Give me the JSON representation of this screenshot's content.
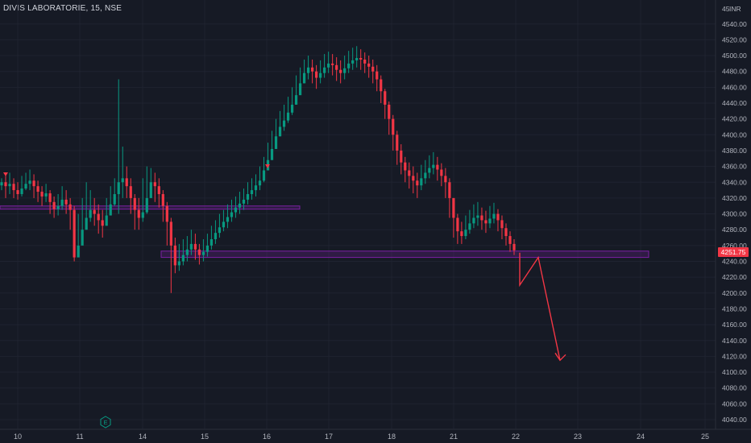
{
  "header": {
    "title": "DIVIS LABORATORIE, 15, NSE"
  },
  "currency": "INR",
  "chart_data": {
    "type": "candlestick",
    "title": "DIVIS LABORATORIE, 15, NSE",
    "y_axis": {
      "min": 4040,
      "max": 4540,
      "ticks": [
        4540,
        4520,
        4500,
        4480,
        4460,
        4440,
        4420,
        4400,
        4380,
        4360,
        4340,
        4320,
        4300,
        4280,
        4260,
        4240,
        4220,
        4200,
        4180,
        4160,
        4140,
        4120,
        4100,
        4080,
        4060,
        4040
      ],
      "top_partial_label": "45",
      "currency_label": "INR"
    },
    "x_axis": {
      "ticks": [
        "10",
        "11",
        "14",
        "15",
        "16",
        "17",
        "18",
        "21",
        "22",
        "23",
        "24",
        "25"
      ]
    },
    "last_price": {
      "label": "4251.75",
      "value": 4251.75,
      "color": "#f23645"
    },
    "colors": {
      "up": "#089981",
      "down": "#f23645",
      "zone": "#7b1fa2",
      "background": "#161a25",
      "grid": "#1f2330"
    },
    "candles_path": [
      [
        4340,
        4345,
        4330
      ],
      [
        4335,
        4350,
        4320
      ],
      [
        4338,
        4352,
        4325
      ],
      [
        4330,
        4345,
        4320
      ],
      [
        4325,
        4340,
        4318
      ],
      [
        4332,
        4348,
        4322
      ],
      [
        4338,
        4352,
        4330
      ],
      [
        4342,
        4356,
        4330
      ],
      [
        4335,
        4350,
        4320
      ],
      [
        4328,
        4342,
        4315
      ],
      [
        4322,
        4335,
        4310
      ],
      [
        4326,
        4338,
        4315
      ],
      [
        4315,
        4330,
        4300
      ],
      [
        4306,
        4322,
        4295
      ],
      [
        4310,
        4325,
        4298
      ],
      [
        4318,
        4335,
        4305
      ],
      [
        4312,
        4330,
        4300
      ],
      [
        4305,
        4320,
        4280
      ],
      [
        4245,
        4310,
        4240
      ],
      [
        4260,
        4300,
        4250
      ],
      [
        4280,
        4320,
        4270
      ],
      [
        4295,
        4340,
        4280
      ],
      [
        4305,
        4330,
        4290
      ],
      [
        4300,
        4320,
        4285
      ],
      [
        4292,
        4312,
        4275
      ],
      [
        4285,
        4305,
        4270
      ],
      [
        4298,
        4320,
        4285
      ],
      [
        4312,
        4335,
        4300
      ],
      [
        4325,
        4345,
        4310
      ],
      [
        4340,
        4470,
        4300
      ],
      [
        4345,
        4385,
        4320
      ],
      [
        4335,
        4360,
        4320
      ],
      [
        4320,
        4345,
        4300
      ],
      [
        4305,
        4325,
        4280
      ],
      [
        4295,
        4320,
        4280
      ],
      [
        4302,
        4345,
        4290
      ],
      [
        4320,
        4360,
        4300
      ],
      [
        4340,
        4358,
        4320
      ],
      [
        4335,
        4352,
        4315
      ],
      [
        4325,
        4345,
        4308
      ],
      [
        4310,
        4330,
        4290
      ],
      [
        4290,
        4315,
        4260
      ],
      [
        4260,
        4295,
        4200
      ],
      [
        4235,
        4270,
        4225
      ],
      [
        4240,
        4262,
        4228
      ],
      [
        4248,
        4268,
        4235
      ],
      [
        4255,
        4272,
        4240
      ],
      [
        4262,
        4280,
        4248
      ],
      [
        4255,
        4275,
        4242
      ],
      [
        4248,
        4262,
        4236
      ],
      [
        4252,
        4268,
        4240
      ],
      [
        4260,
        4275,
        4246
      ],
      [
        4268,
        4285,
        4255
      ],
      [
        4276,
        4292,
        4262
      ],
      [
        4283,
        4300,
        4270
      ],
      [
        4290,
        4305,
        4278
      ],
      [
        4296,
        4312,
        4282
      ],
      [
        4302,
        4318,
        4290
      ],
      [
        4308,
        4322,
        4295
      ],
      [
        4313,
        4328,
        4300
      ],
      [
        4318,
        4332,
        4305
      ],
      [
        4325,
        4340,
        4312
      ],
      [
        4330,
        4345,
        4318
      ],
      [
        4336,
        4350,
        4322
      ],
      [
        4342,
        4360,
        4330
      ],
      [
        4355,
        4372,
        4340
      ],
      [
        4368,
        4390,
        4355
      ],
      [
        4382,
        4405,
        4370
      ],
      [
        4398,
        4420,
        4385
      ],
      [
        4410,
        4430,
        4398
      ],
      [
        4418,
        4438,
        4405
      ],
      [
        4428,
        4448,
        4415
      ],
      [
        4438,
        4460,
        4425
      ],
      [
        4450,
        4475,
        4438
      ],
      [
        4465,
        4485,
        4452
      ],
      [
        4478,
        4495,
        4465
      ],
      [
        4485,
        4500,
        4470
      ],
      [
        4480,
        4495,
        4465
      ],
      [
        4472,
        4488,
        4458
      ],
      [
        4478,
        4494,
        4465
      ],
      [
        4485,
        4502,
        4472
      ],
      [
        4490,
        4505,
        4478
      ],
      [
        4488,
        4502,
        4475
      ],
      [
        4482,
        4498,
        4468
      ],
      [
        4478,
        4494,
        4465
      ],
      [
        4484,
        4500,
        4470
      ],
      [
        4490,
        4506,
        4478
      ],
      [
        4494,
        4510,
        4482
      ],
      [
        4497,
        4512,
        4485
      ],
      [
        4495,
        4508,
        4482
      ],
      [
        4490,
        4504,
        4478
      ],
      [
        4486,
        4500,
        4472
      ],
      [
        4480,
        4495,
        4465
      ],
      [
        4470,
        4488,
        4455
      ],
      [
        4455,
        4475,
        4440
      ],
      [
        4438,
        4458,
        4420
      ],
      [
        4420,
        4442,
        4400
      ],
      [
        4400,
        4425,
        4380
      ],
      [
        4380,
        4405,
        4362
      ],
      [
        4365,
        4388,
        4350
      ],
      [
        4355,
        4372,
        4340
      ],
      [
        4348,
        4365,
        4332
      ],
      [
        4342,
        4360,
        4326
      ],
      [
        4336,
        4352,
        4320
      ],
      [
        4345,
        4362,
        4330
      ],
      [
        4352,
        4368,
        4338
      ],
      [
        4358,
        4374,
        4345
      ],
      [
        4362,
        4378,
        4350
      ],
      [
        4356,
        4372,
        4342
      ],
      [
        4348,
        4364,
        4335
      ],
      [
        4340,
        4358,
        4320
      ],
      [
        4320,
        4345,
        4295
      ],
      [
        4295,
        4320,
        4270
      ],
      [
        4278,
        4300,
        4262
      ],
      [
        4272,
        4290,
        4262
      ],
      [
        4280,
        4298,
        4268
      ],
      [
        4288,
        4305,
        4275
      ],
      [
        4295,
        4312,
        4282
      ],
      [
        4298,
        4315,
        4285
      ],
      [
        4292,
        4308,
        4280
      ],
      [
        4288,
        4304,
        4276
      ],
      [
        4294,
        4310,
        4282
      ],
      [
        4300,
        4314,
        4288
      ],
      [
        4292,
        4306,
        4278
      ],
      [
        4282,
        4298,
        4268
      ],
      [
        4272,
        4288,
        4260
      ],
      [
        4262,
        4278,
        4252
      ],
      [
        4254,
        4268,
        4248
      ]
    ],
    "support_zones": [
      {
        "from": 4306,
        "to": 4310
      },
      {
        "from": 4245,
        "to": 4253
      }
    ],
    "projection": [
      [
        4251,
        "22"
      ],
      [
        4210,
        "22"
      ],
      [
        4245,
        "22"
      ],
      [
        4115,
        "23"
      ]
    ],
    "markers": {
      "earnings_label": "E"
    }
  }
}
